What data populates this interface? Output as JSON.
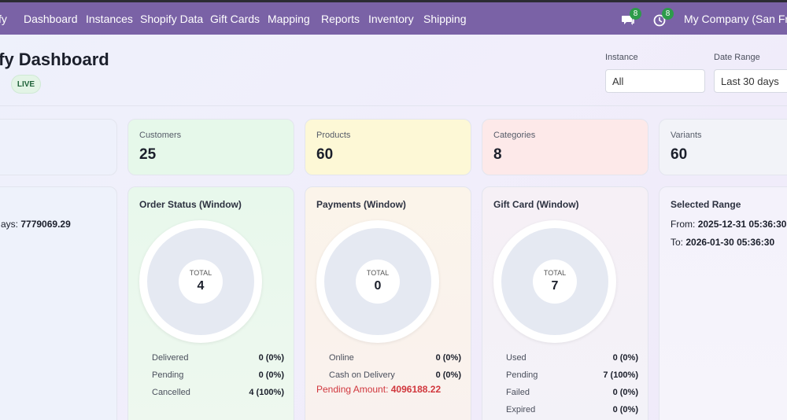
{
  "nav": {
    "brand_fragment": "fy",
    "items": [
      "Dashboard",
      "Instances",
      "Shopify Data",
      "Gift Cards",
      "Mapping",
      "Reports",
      "Inventory",
      "Shipping"
    ],
    "messages_count": "8",
    "activities_count": "8",
    "company": "My Company (San Franc"
  },
  "header": {
    "title": "ify Dashboard",
    "live_badge": "LIVE",
    "instance_label": "Instance",
    "instance_value": "All",
    "date_range_label": "Date Range",
    "date_range_value": "Last 30 days"
  },
  "stats": {
    "customers": {
      "label": "Customers",
      "value": "25"
    },
    "products": {
      "label": "Products",
      "value": "60"
    },
    "categories": {
      "label": "Categories",
      "value": "8"
    },
    "variants": {
      "label": "Variants",
      "value": "60"
    }
  },
  "partial_card": {
    "label_fragment": "ays:",
    "value": "7779069.29"
  },
  "order_status": {
    "title": "Order Status (Window)",
    "total_label": "TOTAL",
    "total": "4",
    "rows": [
      {
        "label": "Delivered",
        "value": "0 (0%)"
      },
      {
        "label": "Pending",
        "value": "0 (0%)"
      },
      {
        "label": "Cancelled",
        "value": "4 (100%)"
      }
    ]
  },
  "payments": {
    "title": "Payments (Window)",
    "total_label": "TOTAL",
    "total": "0",
    "rows": [
      {
        "label": "Online",
        "value": "0 (0%)"
      },
      {
        "label": "Cash on Delivery",
        "value": "0 (0%)"
      }
    ],
    "pending_label": "Pending Amount:",
    "pending_value": "4096188.22"
  },
  "gift_card": {
    "title": "Gift Card (Window)",
    "total_label": "TOTAL",
    "total": "7",
    "rows": [
      {
        "label": "Used",
        "value": "0 (0%)"
      },
      {
        "label": "Pending",
        "value": "7 (100%)"
      },
      {
        "label": "Failed",
        "value": "0 (0%)"
      },
      {
        "label": "Expired",
        "value": "0 (0%)"
      }
    ]
  },
  "selected_range": {
    "title": "Selected Range",
    "from_label": "From:",
    "from_value": "2025-12-31 05:36:30",
    "to_label": "To:",
    "to_value": "2026-01-30 05:36:30"
  },
  "colors": {
    "nav_bg": "#7a62a6",
    "badge_green": "#2d9b4a",
    "customers_bg": "#e6f8ea",
    "products_bg": "#fdf8d6",
    "categories_bg": "#fde9e9",
    "pending_red": "#d1373d"
  }
}
